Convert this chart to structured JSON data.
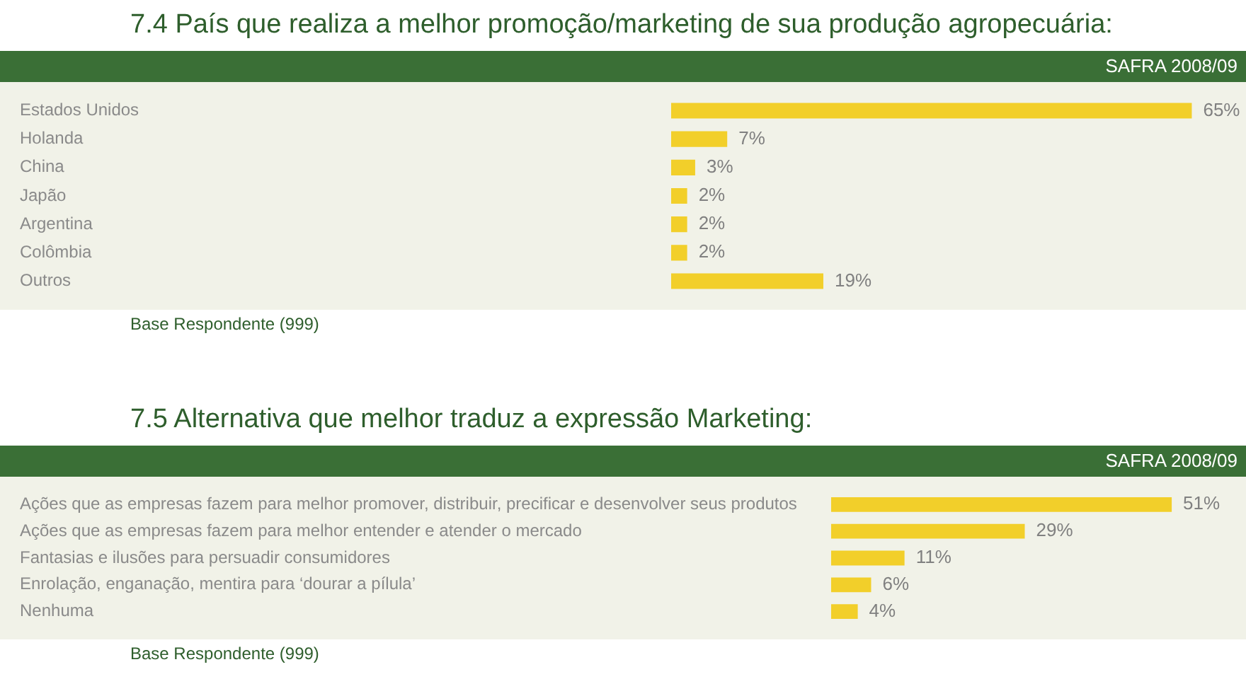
{
  "chart_data": [
    {
      "type": "bar",
      "orientation": "horizontal",
      "title": "7.4 País que realiza a melhor promoção/marketing de sua produção agropecuária:",
      "subtitle": "SAFRA 2008/09",
      "categories": [
        "Estados Unidos",
        "Holanda",
        "China",
        "Japão",
        "Argentina",
        "Colômbia",
        "Outros"
      ],
      "values": [
        65,
        7,
        3,
        2,
        2,
        2,
        19
      ],
      "value_labels": [
        "65%",
        "7%",
        "3%",
        "2%",
        "2%",
        "2%",
        "19%"
      ],
      "color": "#f2cf2a",
      "annotations": [
        "Base Respondente (999)"
      ]
    },
    {
      "type": "bar",
      "orientation": "horizontal",
      "title": "7.5 Alternativa que melhor traduz a expressão Marketing:",
      "subtitle": "SAFRA 2008/09",
      "categories": [
        "Ações que as empresas fazem para melhor promover, distribuir, precificar e desenvolver seus produtos",
        "Ações que as empresas fazem para melhor entender e atender o mercado",
        "Fantasias e ilusões para persuadir consumidores",
        "Enrolação, enganação, mentira para ‘dourar a pílula’",
        "Nenhuma"
      ],
      "values": [
        51,
        29,
        11,
        6,
        4
      ],
      "value_labels": [
        "51%",
        "29%",
        "11%",
        "6%",
        "4%"
      ],
      "color": "#f2cf2a",
      "annotations": [
        "Base Respondente (999)"
      ]
    }
  ]
}
